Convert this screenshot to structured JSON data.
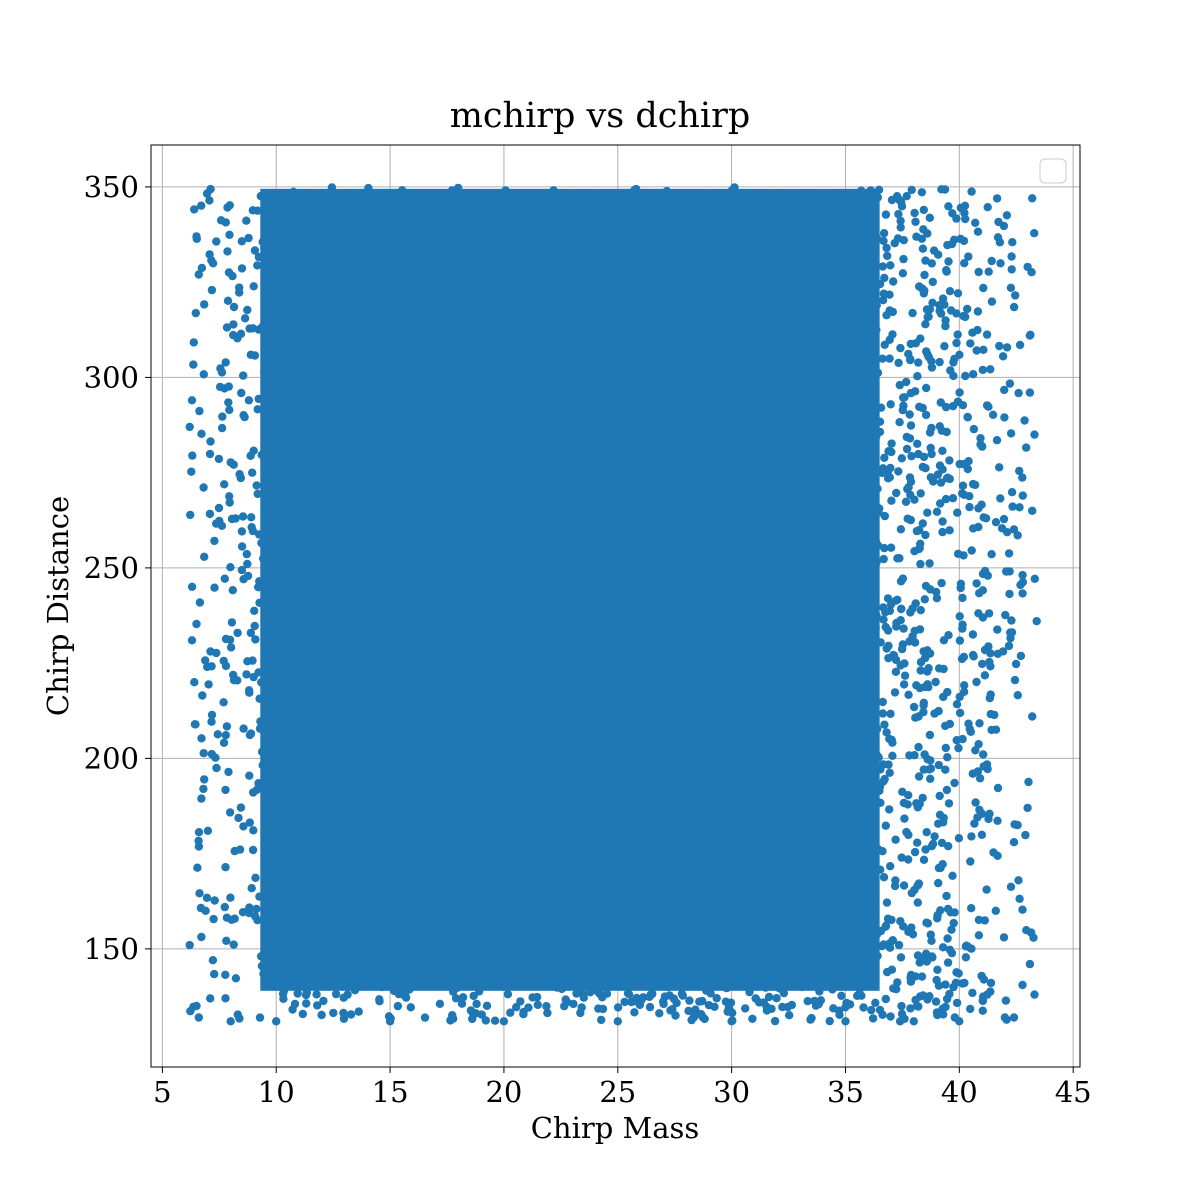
{
  "chart_data": {
    "type": "scatter",
    "title": "mchirp vs dchirp",
    "xlabel": "Chirp Mass",
    "ylabel": "Chirp Distance",
    "xlim": [
      4.5,
      45.3
    ],
    "ylim": [
      119,
      361
    ],
    "x_ticks": [
      5,
      10,
      15,
      20,
      25,
      30,
      35,
      40,
      45
    ],
    "y_ticks": [
      150,
      200,
      250,
      300,
      350
    ],
    "grid": true,
    "legend": "top-right (empty)",
    "series": [
      {
        "color": "#1f77b4",
        "marker": "circle",
        "region": {
          "x_min": 6.2,
          "x_max": 43.4,
          "y_min": 131,
          "y_max": 350,
          "density": "dense core between x 10–35, sparser toward x edges and lower y"
        },
        "points": [
          [
            6.2,
            151
          ],
          [
            6.5,
            135
          ],
          [
            6.6,
            132
          ],
          [
            6.3,
            231
          ],
          [
            6.4,
            220
          ],
          [
            6.2,
            287
          ],
          [
            6.3,
            294
          ],
          [
            6.5,
            337
          ],
          [
            6.6,
            327
          ],
          [
            6.8,
            192
          ],
          [
            7.0,
            181
          ],
          [
            6.9,
            160
          ],
          [
            7.1,
            137
          ],
          [
            8.0,
            131
          ],
          [
            10.0,
            131
          ],
          [
            15.0,
            131
          ],
          [
            20.0,
            131
          ],
          [
            25.0,
            131
          ],
          [
            30.0,
            131
          ],
          [
            35.0,
            131
          ],
          [
            38.0,
            131
          ],
          [
            40.0,
            131
          ],
          [
            42.0,
            132
          ],
          [
            42.4,
            132
          ],
          [
            43.3,
            138
          ],
          [
            43.1,
            146
          ],
          [
            42.6,
            168
          ],
          [
            43.0,
            187
          ],
          [
            43.2,
            211
          ],
          [
            43.4,
            236
          ],
          [
            43.2,
            265
          ],
          [
            43.3,
            285
          ],
          [
            43.1,
            296
          ],
          [
            43.1,
            311
          ],
          [
            43.0,
            329
          ],
          [
            43.2,
            347
          ],
          [
            42.4,
            178
          ],
          [
            41.6,
            160
          ],
          [
            39.8,
            132
          ],
          [
            37.4,
            131
          ]
        ]
      }
    ]
  }
}
